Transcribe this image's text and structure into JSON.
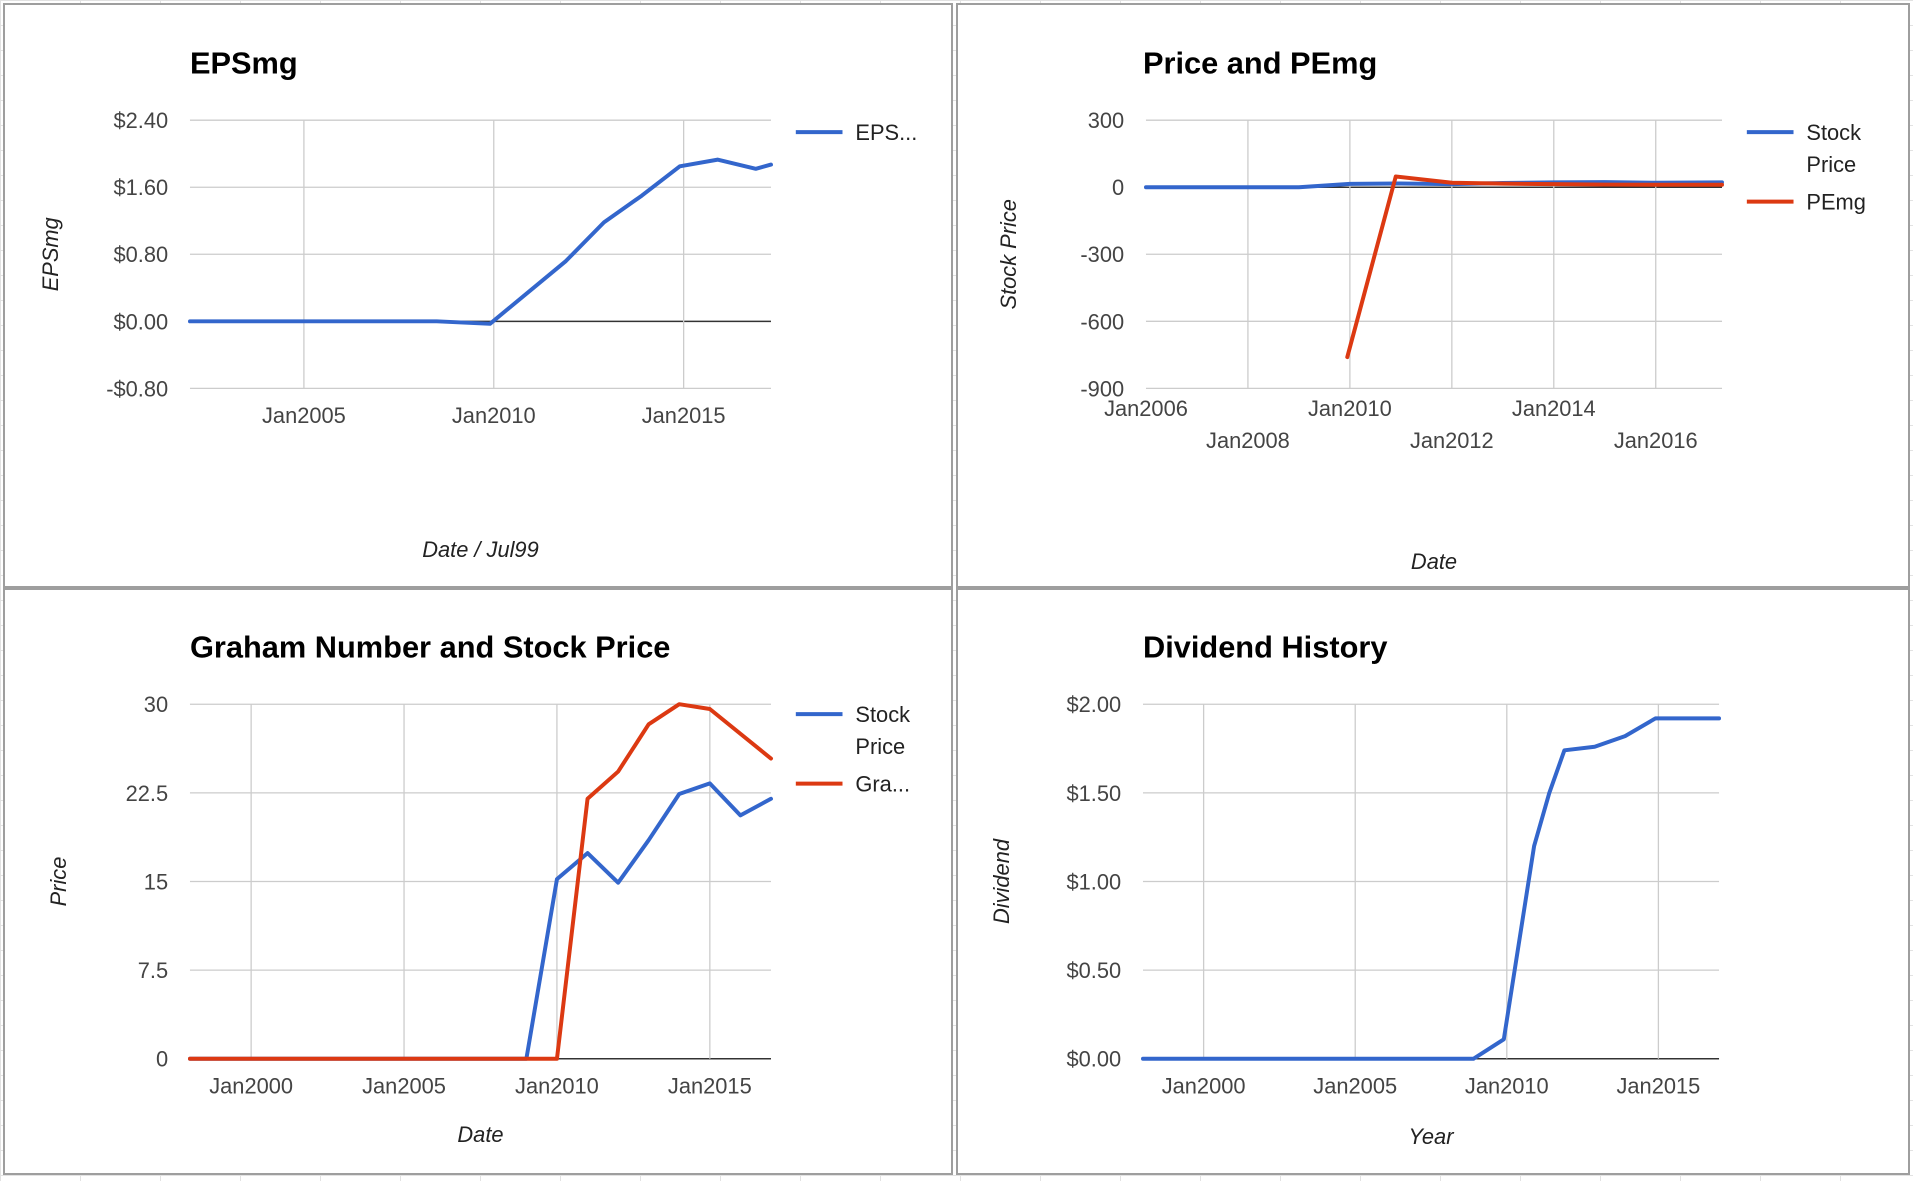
{
  "colors": {
    "blue": "#3366cc",
    "red": "#dc3912"
  },
  "chart_data": [
    {
      "type": "line",
      "title": "EPSmg",
      "xlabel": "Date / Jul99",
      "ylabel": "EPSmg",
      "x_axis": "date",
      "xlim": [
        2002.0,
        2017.3
      ],
      "ylim": [
        -0.8,
        2.4
      ],
      "x_ticks": [
        {
          "value": 2005.0,
          "label": "Jan2005"
        },
        {
          "value": 2010.0,
          "label": "Jan2010"
        },
        {
          "value": 2015.0,
          "label": "Jan2015"
        }
      ],
      "y_ticks": [
        {
          "value": 2.4,
          "label": "$2.40"
        },
        {
          "value": 1.6,
          "label": "$1.60"
        },
        {
          "value": 0.8,
          "label": "$0.80"
        },
        {
          "value": 0.0,
          "label": "$0.00"
        },
        {
          "value": -0.8,
          "label": "-$0.80"
        }
      ],
      "x_labels_staggered": false,
      "gridlines": true,
      "legend_position": "right",
      "series": [
        {
          "name": "EPS...",
          "color": "#3366cc",
          "x": [
            2002.0,
            2008.5,
            2009.9,
            2011.9,
            2012.9,
            2013.9,
            2014.9,
            2015.9,
            2016.9,
            2017.3
          ],
          "y": [
            0.0,
            0.0,
            -0.03,
            0.72,
            1.18,
            1.5,
            1.85,
            1.93,
            1.82,
            1.87
          ]
        }
      ]
    },
    {
      "type": "line",
      "title": "Price and PEmg",
      "xlabel": "Date",
      "ylabel": "Stock Price",
      "x_axis": "date",
      "xlim": [
        2006.0,
        2017.3
      ],
      "ylim": [
        -900,
        300
      ],
      "x_ticks": [
        {
          "value": 2006.0,
          "label": "Jan2006"
        },
        {
          "value": 2008.0,
          "label": "Jan2008"
        },
        {
          "value": 2010.0,
          "label": "Jan2010"
        },
        {
          "value": 2012.0,
          "label": "Jan2012"
        },
        {
          "value": 2014.0,
          "label": "Jan2014"
        },
        {
          "value": 2016.0,
          "label": "Jan2016"
        }
      ],
      "y_ticks": [
        {
          "value": 300,
          "label": "300"
        },
        {
          "value": 0,
          "label": "0"
        },
        {
          "value": -300,
          "label": "-300"
        },
        {
          "value": -600,
          "label": "-600"
        },
        {
          "value": -900,
          "label": "-900"
        }
      ],
      "x_labels_staggered": true,
      "gridlines": true,
      "legend_position": "right",
      "series": [
        {
          "name": "Stock Price",
          "color": "#3366cc",
          "x": [
            2006.0,
            2009.0,
            2010.0,
            2011.0,
            2012.0,
            2013.0,
            2014.0,
            2015.0,
            2016.0,
            2017.3
          ],
          "y": [
            0,
            0,
            15,
            17,
            14,
            19,
            22,
            23,
            20,
            22
          ]
        },
        {
          "name": "PEmg",
          "color": "#dc3912",
          "x": [
            2009.95,
            2010.9,
            2012.0,
            2013.0,
            2014.0,
            2015.0,
            2016.0,
            2017.3
          ],
          "y": [
            -760,
            48,
            20,
            16,
            14,
            12,
            11,
            11
          ]
        }
      ]
    },
    {
      "type": "line",
      "title": "Graham Number and Stock Price",
      "xlabel": "Date",
      "ylabel": "Price",
      "x_axis": "date",
      "xlim": [
        1998.0,
        2017.0
      ],
      "ylim": [
        0,
        30
      ],
      "x_ticks": [
        {
          "value": 2000.0,
          "label": "Jan2000"
        },
        {
          "value": 2005.0,
          "label": "Jan2005"
        },
        {
          "value": 2010.0,
          "label": "Jan2010"
        },
        {
          "value": 2015.0,
          "label": "Jan2015"
        }
      ],
      "y_ticks": [
        {
          "value": 30,
          "label": "30"
        },
        {
          "value": 22.5,
          "label": "22.5"
        },
        {
          "value": 15,
          "label": "15"
        },
        {
          "value": 7.5,
          "label": "7.5"
        },
        {
          "value": 0,
          "label": "0"
        }
      ],
      "x_labels_staggered": false,
      "gridlines": true,
      "legend_position": "right",
      "series": [
        {
          "name": "Stock Price",
          "color": "#3366cc",
          "x": [
            1998.0,
            2009.0,
            2010.0,
            2011.0,
            2012.0,
            2013.0,
            2014.0,
            2015.0,
            2016.0,
            2017.0
          ],
          "y": [
            0,
            0,
            15.2,
            17.4,
            14.9,
            18.5,
            22.4,
            23.3,
            20.6,
            22.0
          ]
        },
        {
          "name": "Gra...",
          "color": "#dc3912",
          "x": [
            1998.0,
            2010.0,
            2011.0,
            2012.0,
            2013.0,
            2014.0,
            2015.0,
            2017.0
          ],
          "y": [
            0,
            0,
            22.0,
            24.3,
            28.3,
            30.0,
            29.6,
            25.4
          ]
        }
      ]
    },
    {
      "type": "line",
      "title": "Dividend History",
      "xlabel": "Year",
      "ylabel": "Dividend",
      "x_axis": "date",
      "xlim": [
        1998.0,
        2017.0
      ],
      "ylim": [
        0,
        2.0
      ],
      "x_ticks": [
        {
          "value": 2000.0,
          "label": "Jan2000"
        },
        {
          "value": 2005.0,
          "label": "Jan2005"
        },
        {
          "value": 2010.0,
          "label": "Jan2010"
        },
        {
          "value": 2015.0,
          "label": "Jan2015"
        }
      ],
      "y_ticks": [
        {
          "value": 2.0,
          "label": "$2.00"
        },
        {
          "value": 1.5,
          "label": "$1.50"
        },
        {
          "value": 1.0,
          "label": "$1.00"
        },
        {
          "value": 0.5,
          "label": "$0.50"
        },
        {
          "value": 0.0,
          "label": "$0.00"
        }
      ],
      "x_labels_staggered": false,
      "gridlines": true,
      "legend_position": "none",
      "series": [
        {
          "name": "",
          "color": "#3366cc",
          "x": [
            1998.0,
            2008.9,
            2009.9,
            2010.9,
            2011.4,
            2011.9,
            2012.9,
            2013.9,
            2014.9,
            2015.9,
            2017.0
          ],
          "y": [
            0,
            0,
            0.11,
            1.2,
            1.5,
            1.74,
            1.76,
            1.82,
            1.92,
            1.92,
            1.92
          ]
        }
      ]
    }
  ]
}
